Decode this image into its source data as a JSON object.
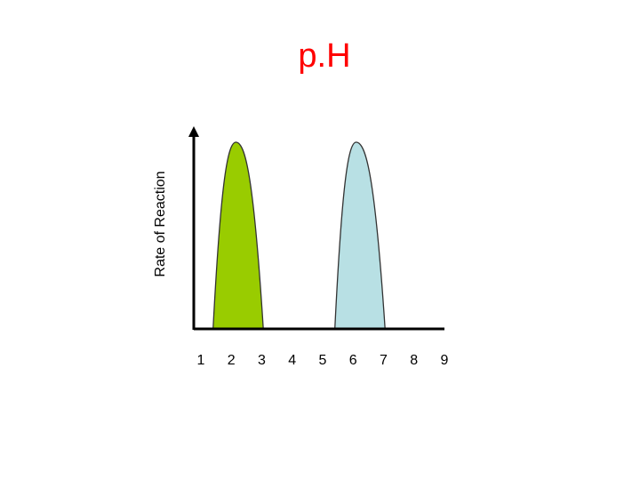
{
  "title": "p.H",
  "chart_data": {
    "type": "area",
    "title": "p.H",
    "xlabel": "",
    "ylabel": "Rate of Reaction",
    "x_ticks": [
      "1",
      "2",
      "3",
      "4",
      "5",
      "6",
      "7",
      "8",
      "9"
    ],
    "xlim": [
      1,
      9.1
    ],
    "ylim": [
      0,
      1.05
    ],
    "grid": false,
    "legend": "none",
    "series": [
      {
        "color": "#99cc00",
        "x_start": 1.4,
        "x_peak": 2.15,
        "x_end": 3.05,
        "peak": 1.0
      },
      {
        "color": "#b8e0e4",
        "x_start": 5.4,
        "x_peak": 6.1,
        "x_end": 7.05,
        "peak": 1.0
      }
    ]
  }
}
